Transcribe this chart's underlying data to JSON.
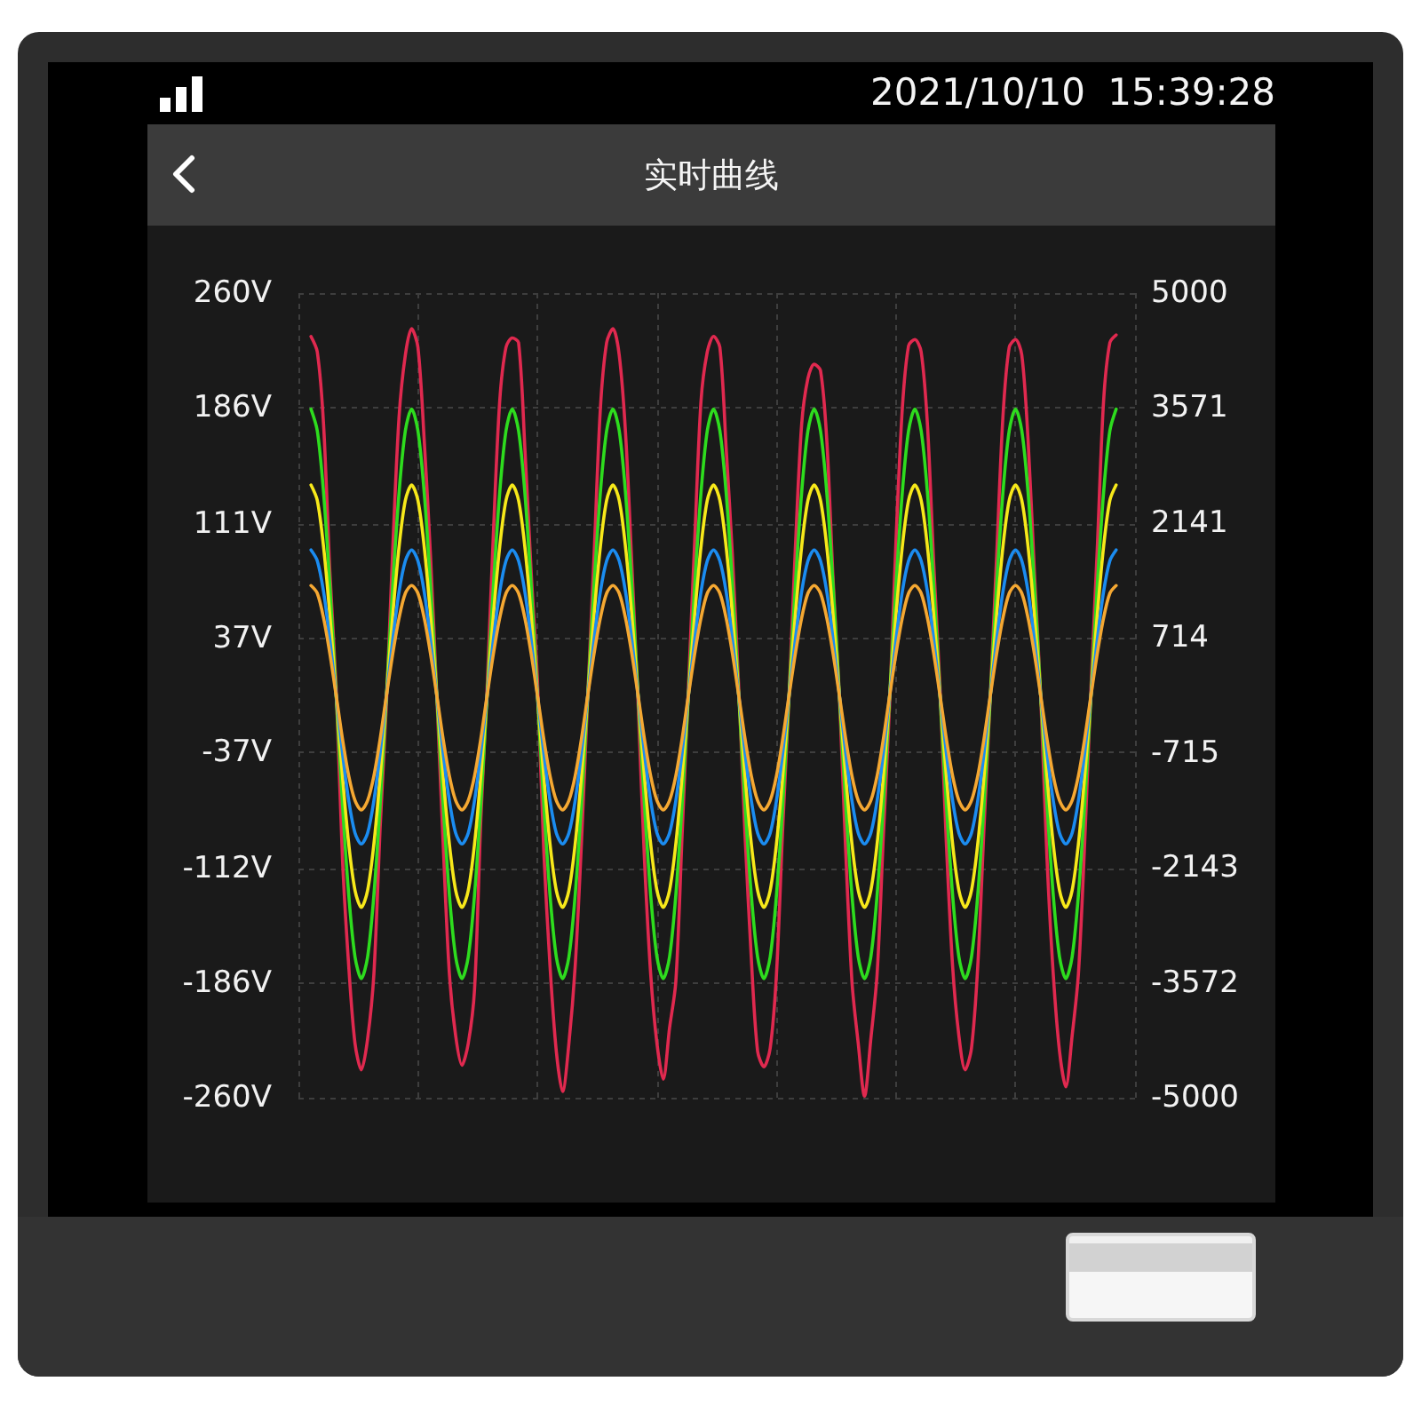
{
  "chart_data": {
    "type": "line",
    "title": "实时曲线",
    "annotations": [
      "2021/10/10 15:39:28"
    ],
    "categories": [
      null,
      null,
      null,
      null,
      null,
      null,
      null,
      null,
      null,
      null,
      null,
      null,
      null,
      null,
      null,
      null,
      null,
      null,
      null,
      null,
      null,
      null,
      null,
      null,
      null,
      null,
      null,
      null,
      null,
      null,
      null,
      null,
      null,
      null,
      null,
      null,
      null,
      null,
      null,
      null,
      null,
      null,
      null,
      null,
      null,
      null,
      null,
      null,
      null,
      null,
      null,
      null,
      null,
      null,
      null,
      null,
      null,
      null,
      null,
      null,
      null,
      null,
      null,
      null,
      null,
      null,
      null,
      null,
      null,
      null,
      null,
      null,
      null,
      null,
      null,
      null,
      null,
      null,
      null,
      null,
      null,
      null,
      null,
      null,
      null,
      null,
      null,
      null,
      null,
      null,
      null,
      null,
      null,
      null,
      null,
      null,
      null,
      null,
      null,
      null,
      null,
      null,
      null,
      null,
      null,
      null,
      null,
      null,
      null,
      null,
      null,
      null,
      null,
      null,
      null,
      null,
      null,
      null,
      null,
      null,
      null,
      null,
      null,
      null,
      null,
      null,
      null,
      null,
      null,
      null,
      null,
      null,
      null,
      null
    ],
    "series": [
      {
        "color": "#e0294f",
        "values": [
          null,
          null,
          232,
          222,
          175,
          80,
          5,
          -105,
          -175,
          -225,
          -242,
          -222,
          -180,
          -85,
          -5,
          95,
          180,
          220,
          237,
          225,
          165,
          90,
          0,
          -95,
          -180,
          -220,
          -239,
          -225,
          -190,
          -80,
          5,
          105,
          190,
          225,
          231,
          228,
          160,
          80,
          10,
          -100,
          -175,
          -230,
          -256,
          -225,
          -175,
          -95,
          0,
          90,
          185,
          228,
          237,
          220,
          170,
          85,
          -5,
          -105,
          -180,
          -225,
          -248,
          -215,
          -185,
          -90,
          5,
          100,
          190,
          222,
          232,
          225,
          160,
          90,
          5,
          -90,
          -170,
          -230,
          -240,
          -228,
          -180,
          -85,
          0,
          95,
          175,
          205,
          214,
          210,
          165,
          75,
          0,
          -100,
          -185,
          -225,
          -259,
          -222,
          -180,
          -90,
          -5,
          100,
          185,
          226,
          230,
          222,
          175,
          85,
          5,
          -95,
          -175,
          -220,
          -242,
          -228,
          -175,
          -85,
          0,
          90,
          180,
          225,
          230,
          220,
          165,
          80,
          0,
          -105,
          -180,
          -230,
          -253,
          -220,
          -180,
          -95,
          5,
          95,
          190,
          228,
          233,
          null,
          null,
          null
        ]
      },
      {
        "color": "#2edc1e",
        "values": [
          null,
          null,
          185,
          171,
          131,
          71,
          0,
          -70,
          -129,
          -169,
          -183,
          -169,
          -129,
          -70,
          0,
          71,
          131,
          171,
          185,
          171,
          131,
          71,
          0,
          -70,
          -129,
          -169,
          -183,
          -169,
          -129,
          -70,
          0,
          71,
          131,
          171,
          185,
          171,
          131,
          71,
          0,
          -70,
          -129,
          -169,
          -183,
          -169,
          -129,
          -70,
          0,
          71,
          131,
          171,
          185,
          171,
          131,
          71,
          0,
          -70,
          -129,
          -169,
          -183,
          -169,
          -129,
          -70,
          0,
          71,
          131,
          171,
          185,
          171,
          131,
          71,
          0,
          -70,
          -129,
          -169,
          -183,
          -169,
          -129,
          -70,
          0,
          71,
          131,
          171,
          185,
          171,
          131,
          71,
          0,
          -70,
          -129,
          -169,
          -183,
          -169,
          -129,
          -70,
          0,
          71,
          131,
          171,
          185,
          171,
          131,
          71,
          0,
          -70,
          -129,
          -169,
          -183,
          -169,
          -129,
          -70,
          0,
          71,
          131,
          171,
          185,
          171,
          131,
          71,
          0,
          -70,
          -129,
          -169,
          -183,
          -169,
          -129,
          -70,
          0,
          71,
          131,
          171,
          185,
          null,
          null,
          null
        ]
      },
      {
        "color": "#f7e81a",
        "values": [
          null,
          null,
          136,
          126,
          96,
          52,
          0,
          -52,
          -96,
          -126,
          -137,
          -126,
          -96,
          -52,
          0,
          52,
          96,
          126,
          136,
          126,
          96,
          52,
          0,
          -52,
          -96,
          -126,
          -137,
          -126,
          -96,
          -52,
          0,
          52,
          96,
          126,
          136,
          126,
          96,
          52,
          0,
          -52,
          -96,
          -126,
          -137,
          -126,
          -96,
          -52,
          0,
          52,
          96,
          126,
          136,
          126,
          96,
          52,
          0,
          -52,
          -96,
          -126,
          -137,
          -126,
          -96,
          -52,
          0,
          52,
          96,
          126,
          136,
          126,
          96,
          52,
          0,
          -52,
          -96,
          -126,
          -137,
          -126,
          -96,
          -52,
          0,
          52,
          96,
          126,
          136,
          126,
          96,
          52,
          0,
          -52,
          -96,
          -126,
          -137,
          -126,
          -96,
          -52,
          0,
          52,
          96,
          126,
          136,
          126,
          96,
          52,
          0,
          -52,
          -96,
          -126,
          -137,
          -126,
          -96,
          -52,
          0,
          52,
          96,
          126,
          136,
          126,
          96,
          52,
          0,
          -52,
          -96,
          -126,
          -137,
          -126,
          -96,
          -52,
          0,
          52,
          96,
          126,
          136,
          null,
          null,
          null
        ]
      },
      {
        "color": "#1b8cf0",
        "values": [
          null,
          null,
          94,
          87,
          67,
          36,
          0,
          -37,
          -68,
          -89,
          -96,
          -89,
          -68,
          -37,
          0,
          36,
          67,
          87,
          94,
          87,
          67,
          36,
          0,
          -37,
          -68,
          -89,
          -96,
          -89,
          -68,
          -37,
          0,
          36,
          67,
          87,
          94,
          87,
          67,
          36,
          0,
          -37,
          -68,
          -89,
          -96,
          -89,
          -68,
          -37,
          0,
          36,
          67,
          87,
          94,
          87,
          67,
          36,
          0,
          -37,
          -68,
          -89,
          -96,
          -89,
          -68,
          -37,
          0,
          36,
          67,
          87,
          94,
          87,
          67,
          36,
          0,
          -37,
          -68,
          -89,
          -96,
          -89,
          -68,
          -37,
          0,
          36,
          67,
          87,
          94,
          87,
          67,
          36,
          0,
          -37,
          -68,
          -89,
          -96,
          -89,
          -68,
          -37,
          0,
          36,
          67,
          87,
          94,
          87,
          67,
          36,
          0,
          -37,
          -68,
          -89,
          -96,
          -89,
          -68,
          -37,
          0,
          36,
          67,
          87,
          94,
          87,
          67,
          36,
          0,
          -37,
          -68,
          -89,
          -96,
          -89,
          -68,
          -37,
          0,
          36,
          67,
          87,
          94,
          null,
          null,
          null
        ]
      },
      {
        "color": "#f5a832",
        "values": [
          null,
          null,
          71,
          66,
          50,
          27,
          0,
          -28,
          -52,
          -68,
          -74,
          -68,
          -52,
          -28,
          0,
          27,
          50,
          66,
          71,
          66,
          50,
          27,
          0,
          -28,
          -52,
          -68,
          -74,
          -68,
          -52,
          -28,
          0,
          27,
          50,
          66,
          71,
          66,
          50,
          27,
          0,
          -28,
          -52,
          -68,
          -74,
          -68,
          -52,
          -28,
          0,
          27,
          50,
          66,
          71,
          66,
          50,
          27,
          0,
          -28,
          -52,
          -68,
          -74,
          -68,
          -52,
          -28,
          0,
          27,
          50,
          66,
          71,
          66,
          50,
          27,
          0,
          -28,
          -52,
          -68,
          -74,
          -68,
          -52,
          -28,
          0,
          27,
          50,
          66,
          71,
          66,
          50,
          27,
          0,
          -28,
          -52,
          -68,
          -74,
          -68,
          -52,
          -28,
          0,
          27,
          50,
          66,
          71,
          66,
          50,
          27,
          0,
          -28,
          -52,
          -68,
          -74,
          -68,
          -52,
          -28,
          0,
          27,
          50,
          66,
          71,
          66,
          50,
          27,
          0,
          -28,
          -52,
          -68,
          -74,
          -68,
          -52,
          -28,
          0,
          27,
          50,
          66,
          71,
          null,
          null,
          null
        ]
      }
    ],
    "ylim": [
      -260,
      260
    ],
    "yticks": [
      {
        "value": 260,
        "label": "260V"
      },
      {
        "value": 186,
        "label": "186V"
      },
      {
        "value": 111,
        "label": "111V"
      },
      {
        "value": 37,
        "label": "37V"
      },
      {
        "value": -37,
        "label": "-37V"
      },
      {
        "value": -112,
        "label": "-112V"
      },
      {
        "value": -186,
        "label": "-186V"
      },
      {
        "value": -260,
        "label": "-260V"
      }
    ],
    "y2lim": [
      -5000,
      5000
    ],
    "y2ticks": [
      5000,
      3571,
      2141,
      714,
      -715,
      -2143,
      -3572,
      -5000
    ],
    "grid": true,
    "marker": "none",
    "line_style": "solid"
  }
}
